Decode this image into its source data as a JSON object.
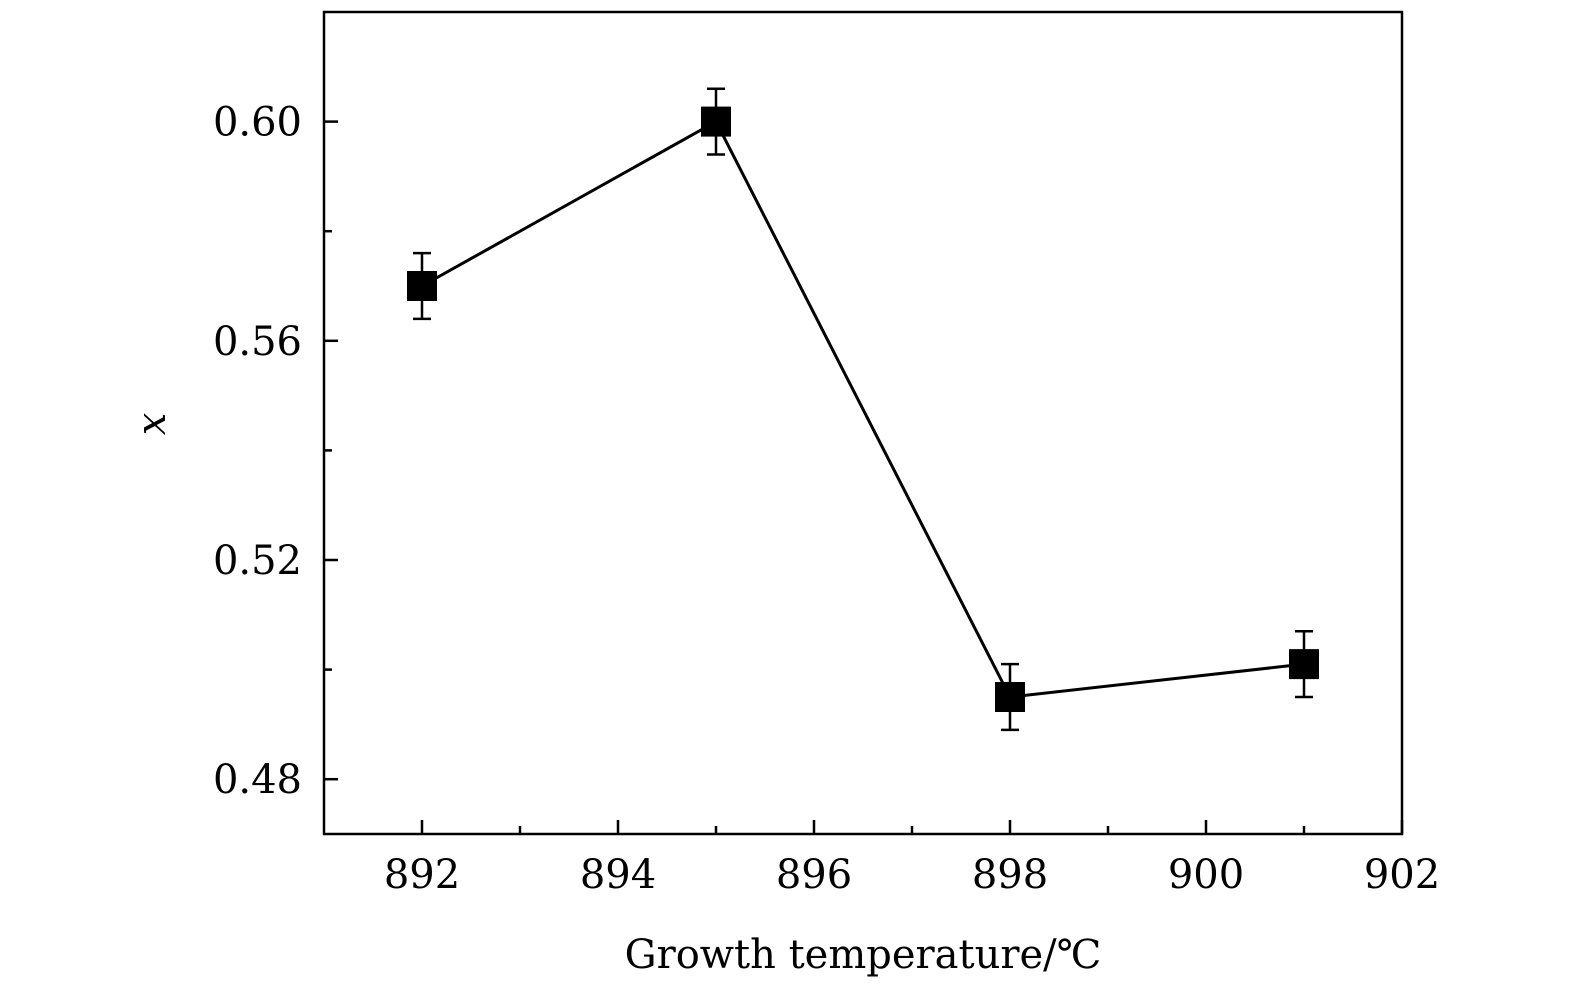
{
  "chart_data": {
    "type": "line",
    "title": "",
    "xlabel": "Growth temperature/℃",
    "ylabel": "x",
    "xlim": [
      891,
      902
    ],
    "ylim": [
      0.47,
      0.62
    ],
    "x_ticks": [
      892,
      894,
      896,
      898,
      900,
      902
    ],
    "x_tick_labels": [
      "892",
      "894",
      "896",
      "898",
      "900",
      "902"
    ],
    "x_minor_ticks": [
      893,
      895,
      897,
      899,
      901
    ],
    "y_ticks": [
      0.48,
      0.52,
      0.56,
      0.6
    ],
    "y_tick_labels": [
      "0.48",
      "0.52",
      "0.56",
      "0.60"
    ],
    "y_minor_ticks": [
      0.5,
      0.54,
      0.58
    ],
    "grid": false,
    "legend": "none",
    "marker": "square",
    "series": [
      {
        "name": "x",
        "color": "#000000",
        "x": [
          892,
          895,
          898,
          901
        ],
        "y": [
          0.57,
          0.6,
          0.495,
          0.501
        ],
        "yerr": [
          0.006,
          0.006,
          0.006,
          0.006
        ]
      }
    ]
  }
}
